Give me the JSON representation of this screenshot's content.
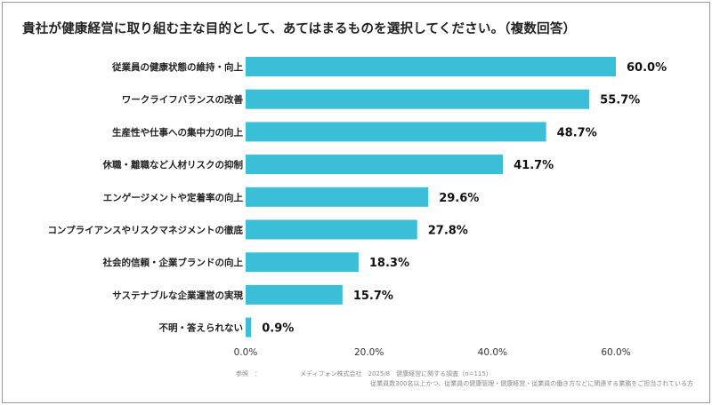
{
  "chart_data": {
    "type": "bar",
    "orientation": "horizontal",
    "title": "貴社が健康経営に取り組む主な目的として、あてはまるものを選択してください。（複数回答）",
    "categories": [
      "従業員の健康状態の維持・向上",
      "ワークライフバランスの改善",
      "生産性や仕事への集中力の向上",
      "休職・離職など人材リスクの抑制",
      "エンゲージメントや定着率の向上",
      "コンプライアンスやリスクマネジメントの徹底",
      "社会的信頼・企業ブランドの向上",
      "サステナブルな企業運営の実現",
      "不明・答えられない"
    ],
    "values": [
      60.0,
      55.7,
      48.7,
      41.7,
      29.6,
      27.8,
      18.3,
      15.7,
      0.9
    ],
    "value_labels": [
      "60.0%",
      "55.7%",
      "48.7%",
      "41.7%",
      "29.6%",
      "27.8%",
      "18.3%",
      "15.7%",
      "0.9%"
    ],
    "xticks": [
      "0.0%",
      "20.0%",
      "40.0%",
      "60.0%"
    ],
    "xlim": [
      0,
      60
    ],
    "grid": false,
    "bar_color": "#3bbfd8"
  },
  "source": {
    "label": "参照　：",
    "line1": "メディフォン株式会社　2025/8　健康経営に関する調査（n=115）",
    "line2": "従業員数300名以上かつ、従業員の健康管理・健康経営・従業員の働き方などに関連する業務をご担当されている方"
  }
}
